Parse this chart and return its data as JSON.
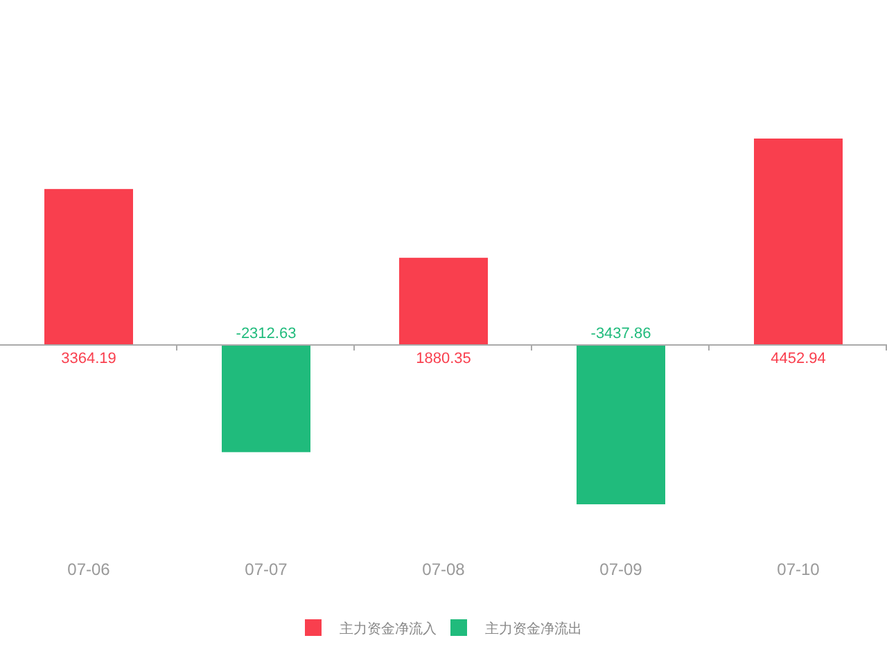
{
  "chart_data": {
    "type": "bar",
    "categories": [
      "07-06",
      "07-07",
      "07-08",
      "07-09",
      "07-10"
    ],
    "series": [
      {
        "name": "主力资金净流入",
        "color": "#f93f4e",
        "values": [
          3364.19,
          null,
          1880.35,
          null,
          4452.94
        ]
      },
      {
        "name": "主力资金净流出",
        "color": "#20bb7c",
        "values": [
          null,
          -2312.63,
          null,
          -3437.86,
          null
        ]
      }
    ],
    "stacked": true,
    "data_labels": true,
    "legend": "bottom"
  }
}
